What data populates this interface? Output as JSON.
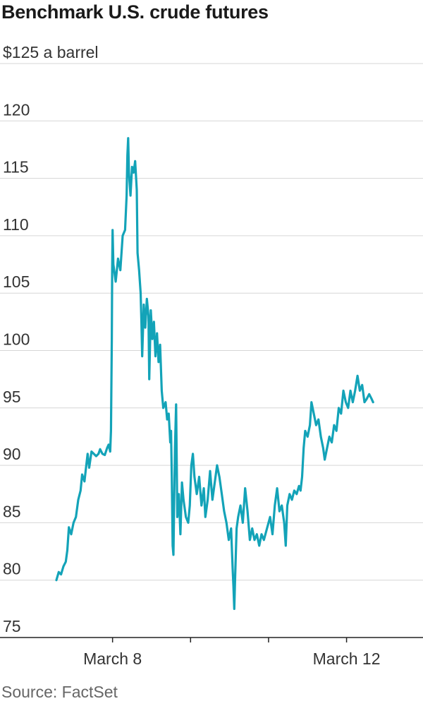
{
  "title": "Benchmark U.S. crude futures",
  "source": "Source: FactSet",
  "colors": {
    "line": "#13a3b8",
    "grid": "#d6d6d6",
    "axis": "#222222"
  },
  "chart_data": {
    "type": "line",
    "title": "Benchmark U.S. crude futures",
    "ylabel": "",
    "xlabel": "",
    "ylim": [
      75,
      125
    ],
    "xlim": [
      0,
      4.7
    ],
    "y_ticks": [
      {
        "value": 125,
        "label": "$125 a barrel"
      },
      {
        "value": 120,
        "label": "120"
      },
      {
        "value": 115,
        "label": "115"
      },
      {
        "value": 110,
        "label": "110"
      },
      {
        "value": 105,
        "label": "105"
      },
      {
        "value": 100,
        "label": "100"
      },
      {
        "value": 95,
        "label": "95"
      },
      {
        "value": 90,
        "label": "90"
      },
      {
        "value": 85,
        "label": "85"
      },
      {
        "value": 80,
        "label": "80"
      },
      {
        "value": 75,
        "label": "75"
      }
    ],
    "x_ticks": [
      {
        "value": 0.72,
        "label": "March 8"
      },
      {
        "value": 1.72,
        "label": ""
      },
      {
        "value": 2.72,
        "label": ""
      },
      {
        "value": 3.72,
        "label": "March 12"
      }
    ],
    "grid": true,
    "series": [
      {
        "values": [
          [
            0.0,
            80.0
          ],
          [
            0.03,
            80.7
          ],
          [
            0.06,
            80.5
          ],
          [
            0.09,
            81.2
          ],
          [
            0.12,
            81.6
          ],
          [
            0.14,
            82.6
          ],
          [
            0.16,
            84.6
          ],
          [
            0.19,
            84.0
          ],
          [
            0.22,
            85.0
          ],
          [
            0.25,
            85.5
          ],
          [
            0.28,
            87.0
          ],
          [
            0.31,
            87.8
          ],
          [
            0.33,
            89.2
          ],
          [
            0.36,
            88.6
          ],
          [
            0.38,
            89.8
          ],
          [
            0.4,
            91.0
          ],
          [
            0.42,
            89.8
          ],
          [
            0.45,
            91.2
          ],
          [
            0.48,
            91.0
          ],
          [
            0.51,
            90.8
          ],
          [
            0.54,
            91.0
          ],
          [
            0.56,
            91.4
          ],
          [
            0.59,
            91.0
          ],
          [
            0.62,
            90.9
          ],
          [
            0.65,
            91.5
          ],
          [
            0.67,
            91.8
          ],
          [
            0.69,
            91.2
          ],
          [
            0.7,
            93.0
          ],
          [
            0.71,
            101.0
          ],
          [
            0.715,
            107.0
          ],
          [
            0.72,
            110.5
          ],
          [
            0.73,
            107.5
          ],
          [
            0.76,
            106.0
          ],
          [
            0.79,
            108.0
          ],
          [
            0.82,
            107.0
          ],
          [
            0.85,
            110.0
          ],
          [
            0.88,
            110.5
          ],
          [
            0.9,
            113.5
          ],
          [
            0.91,
            117.0
          ],
          [
            0.92,
            118.5
          ],
          [
            0.93,
            115.5
          ],
          [
            0.95,
            113.5
          ],
          [
            0.97,
            116.0
          ],
          [
            0.99,
            115.5
          ],
          [
            1.01,
            116.5
          ],
          [
            1.03,
            114.0
          ],
          [
            1.04,
            108.5
          ],
          [
            1.06,
            107.0
          ],
          [
            1.08,
            105.0
          ],
          [
            1.09,
            102.5
          ],
          [
            1.1,
            99.5
          ],
          [
            1.12,
            104.0
          ],
          [
            1.14,
            102.0
          ],
          [
            1.16,
            104.5
          ],
          [
            1.18,
            103.0
          ],
          [
            1.19,
            97.5
          ],
          [
            1.21,
            103.5
          ],
          [
            1.23,
            101.0
          ],
          [
            1.25,
            102.5
          ],
          [
            1.27,
            99.5
          ],
          [
            1.29,
            101.5
          ],
          [
            1.31,
            99.0
          ],
          [
            1.33,
            100.5
          ],
          [
            1.35,
            96.5
          ],
          [
            1.37,
            95.0
          ],
          [
            1.4,
            95.5
          ],
          [
            1.42,
            94.0
          ],
          [
            1.44,
            94.5
          ],
          [
            1.46,
            92.0
          ],
          [
            1.47,
            93.0
          ],
          [
            1.48,
            89.0
          ],
          [
            1.49,
            83.0
          ],
          [
            1.5,
            82.2
          ],
          [
            1.51,
            87.0
          ],
          [
            1.52,
            91.5
          ],
          [
            1.535,
            95.3
          ],
          [
            1.55,
            85.5
          ],
          [
            1.57,
            87.5
          ],
          [
            1.59,
            84.0
          ],
          [
            1.61,
            88.5
          ],
          [
            1.63,
            87.0
          ],
          [
            1.66,
            85.5
          ],
          [
            1.69,
            85.0
          ],
          [
            1.71,
            86.5
          ],
          [
            1.73,
            90.0
          ],
          [
            1.75,
            91.0
          ],
          [
            1.77,
            89.0
          ],
          [
            1.8,
            87.5
          ],
          [
            1.83,
            89.0
          ],
          [
            1.86,
            86.5
          ],
          [
            1.89,
            88.0
          ],
          [
            1.91,
            85.5
          ],
          [
            1.94,
            87.0
          ],
          [
            1.97,
            89.5
          ],
          [
            2.0,
            87.0
          ],
          [
            2.03,
            88.5
          ],
          [
            2.06,
            90.0
          ],
          [
            2.09,
            89.0
          ],
          [
            2.12,
            87.5
          ],
          [
            2.15,
            86.0
          ],
          [
            2.18,
            85.0
          ],
          [
            2.21,
            83.5
          ],
          [
            2.24,
            84.5
          ],
          [
            2.26,
            81.0
          ],
          [
            2.27,
            79.5
          ],
          [
            2.28,
            77.5
          ],
          [
            2.29,
            80.0
          ],
          [
            2.31,
            84.5
          ],
          [
            2.33,
            85.5
          ],
          [
            2.36,
            86.5
          ],
          [
            2.39,
            85.0
          ],
          [
            2.42,
            88.0
          ],
          [
            2.45,
            86.0
          ],
          [
            2.48,
            83.5
          ],
          [
            2.51,
            84.5
          ],
          [
            2.54,
            83.5
          ],
          [
            2.57,
            84.0
          ],
          [
            2.6,
            83.0
          ],
          [
            2.63,
            84.0
          ],
          [
            2.66,
            83.5
          ],
          [
            2.7,
            84.5
          ],
          [
            2.74,
            85.5
          ],
          [
            2.77,
            84.0
          ],
          [
            2.8,
            86.5
          ],
          [
            2.83,
            88.0
          ],
          [
            2.86,
            86.0
          ],
          [
            2.89,
            86.5
          ],
          [
            2.92,
            85.0
          ],
          [
            2.94,
            83.0
          ],
          [
            2.96,
            86.5
          ],
          [
            2.99,
            87.5
          ],
          [
            3.02,
            87.0
          ],
          [
            3.05,
            87.8
          ],
          [
            3.08,
            87.5
          ],
          [
            3.11,
            88.2
          ],
          [
            3.13,
            87.8
          ],
          [
            3.15,
            89.0
          ],
          [
            3.17,
            91.5
          ],
          [
            3.19,
            93.0
          ],
          [
            3.22,
            92.5
          ],
          [
            3.25,
            93.5
          ],
          [
            3.27,
            95.5
          ],
          [
            3.3,
            94.5
          ],
          [
            3.33,
            93.5
          ],
          [
            3.36,
            94.0
          ],
          [
            3.39,
            92.5
          ],
          [
            3.42,
            91.5
          ],
          [
            3.44,
            90.5
          ],
          [
            3.47,
            91.5
          ],
          [
            3.5,
            92.5
          ],
          [
            3.53,
            92.0
          ],
          [
            3.56,
            93.5
          ],
          [
            3.59,
            93.0
          ],
          [
            3.62,
            95.0
          ],
          [
            3.65,
            94.5
          ],
          [
            3.68,
            96.5
          ],
          [
            3.71,
            95.5
          ],
          [
            3.74,
            95.0
          ],
          [
            3.77,
            96.5
          ],
          [
            3.8,
            95.5
          ],
          [
            3.83,
            96.5
          ],
          [
            3.86,
            97.8
          ],
          [
            3.89,
            96.5
          ],
          [
            3.92,
            97.0
          ],
          [
            3.95,
            95.5
          ],
          [
            3.98,
            95.8
          ],
          [
            4.01,
            96.2
          ],
          [
            4.04,
            95.8
          ],
          [
            4.06,
            95.5
          ]
        ]
      }
    ]
  }
}
